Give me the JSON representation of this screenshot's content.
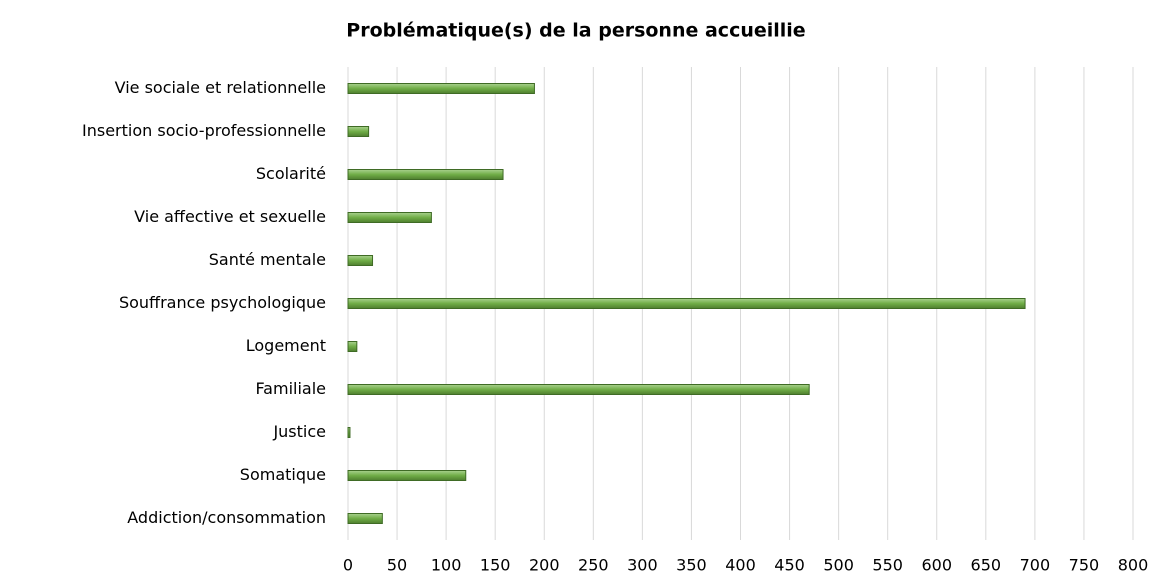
{
  "chart_data": {
    "type": "barh",
    "title": "Problématique(s) de la personne accueillie",
    "categories": [
      "Vie sociale et relationnelle",
      "Insertion socio-professionnelle",
      "Scolarité",
      "Vie affective et sexuelle",
      "Santé mentale",
      "Souffrance psychologique",
      "Logement",
      "Familiale",
      "Justice",
      "Somatique",
      "Addiction/consommation"
    ],
    "values": [
      190,
      21,
      158,
      85,
      25,
      690,
      9,
      470,
      2,
      120,
      35
    ],
    "color": "#70ad47",
    "xlim": [
      0,
      800
    ],
    "xticks": [
      0,
      50,
      100,
      150,
      200,
      250,
      300,
      350,
      400,
      450,
      500,
      550,
      600,
      650,
      700,
      750,
      800
    ],
    "grid": true
  }
}
